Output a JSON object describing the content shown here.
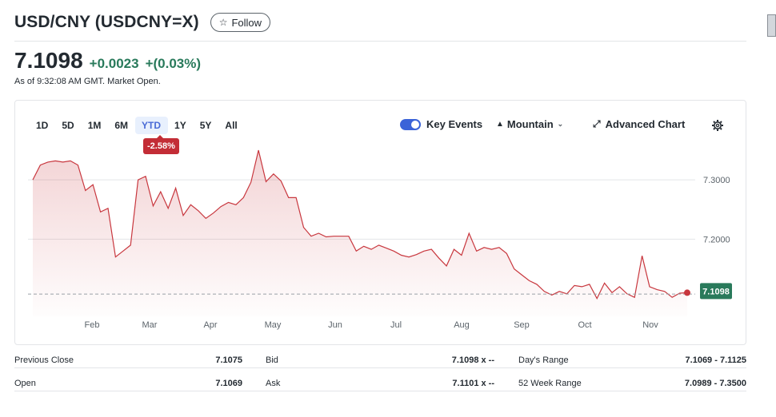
{
  "header": {
    "title": "USD/CNY (USDCNY=X)",
    "follow_label": "Follow"
  },
  "quote": {
    "price": "7.1098",
    "change": "+0.0023",
    "change_pct": "+(0.03%)",
    "as_of": "As of 9:32:08 AM GMT. Market Open.",
    "change_color": "#297a5b"
  },
  "chart_controls": {
    "ranges": [
      "1D",
      "5D",
      "1M",
      "6M",
      "YTD",
      "1Y",
      "5Y",
      "All"
    ],
    "active_range": "YTD",
    "ytd_badge": "-2.58%",
    "key_events_label": "Key Events",
    "key_events_on": true,
    "chart_type_label": "Mountain",
    "advanced_chart_label": "Advanced Chart"
  },
  "chart_data": {
    "type": "area",
    "x_labels": [
      "Feb",
      "Mar",
      "Apr",
      "May",
      "Jun",
      "Jul",
      "Aug",
      "Sep",
      "Oct",
      "Nov"
    ],
    "y_tick_labels": [
      "7.3000",
      "7.2000"
    ],
    "y_ticks": [
      7.3,
      7.2
    ],
    "ylim": [
      7.07,
      7.35
    ],
    "previous_close": 7.1075,
    "last_price_label": "7.1098",
    "line_color": "#c8373e",
    "values": [
      7.3,
      7.325,
      7.33,
      7.332,
      7.33,
      7.332,
      7.325,
      7.282,
      7.292,
      7.246,
      7.252,
      7.17,
      7.18,
      7.19,
      7.3,
      7.306,
      7.256,
      7.28,
      7.252,
      7.286,
      7.24,
      7.258,
      7.248,
      7.235,
      7.244,
      7.255,
      7.262,
      7.258,
      7.27,
      7.296,
      7.35,
      7.297,
      7.31,
      7.298,
      7.27,
      7.27,
      7.22,
      7.205,
      7.21,
      7.204,
      7.205,
      7.205,
      7.205,
      7.18,
      7.188,
      7.183,
      7.19,
      7.185,
      7.18,
      7.173,
      7.17,
      7.174,
      7.18,
      7.183,
      7.168,
      7.155,
      7.183,
      7.173,
      7.21,
      7.18,
      7.186,
      7.183,
      7.186,
      7.176,
      7.15,
      7.14,
      7.13,
      7.124,
      7.112,
      7.106,
      7.112,
      7.108,
      7.122,
      7.12,
      7.124,
      7.1,
      7.126,
      7.11,
      7.12,
      7.108,
      7.102,
      7.172,
      7.12,
      7.115,
      7.112,
      7.102,
      7.109,
      7.1098
    ]
  },
  "stats": {
    "rows": [
      {
        "label1": "Previous Close",
        "value1": "7.1075",
        "label2": "Bid",
        "value2": "7.1098 x --",
        "label3": "Day's Range",
        "value3": "7.1069 - 7.1125"
      },
      {
        "label1": "Open",
        "value1": "7.1069",
        "label2": "Ask",
        "value2": "7.1101 x --",
        "label3": "52 Week Range",
        "value3": "7.0989 - 7.3500"
      }
    ]
  }
}
